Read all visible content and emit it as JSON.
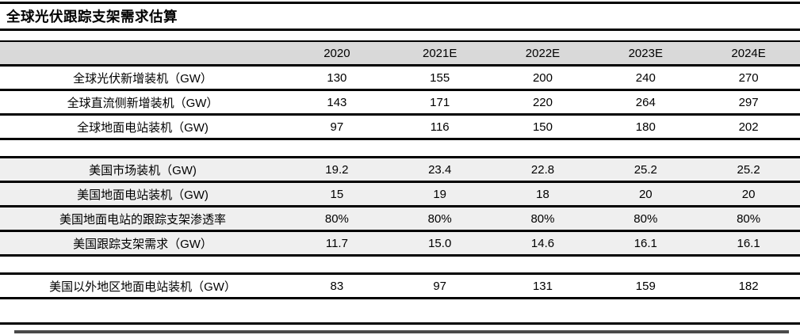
{
  "title": "全球光伏跟踪支架需求估算",
  "table": {
    "columns": [
      "2020",
      "2021E",
      "2022E",
      "2023E",
      "2024E"
    ],
    "sections": [
      {
        "shaded": false,
        "rows": [
          {
            "label": "全球光伏新增装机（GW）",
            "values": [
              "130",
              "155",
              "200",
              "240",
              "270"
            ]
          },
          {
            "label": "全球直流侧新增装机（GW）",
            "values": [
              "143",
              "171",
              "220",
              "264",
              "297"
            ]
          },
          {
            "label": "全球地面电站装机（GW)",
            "values": [
              "97",
              "116",
              "150",
              "180",
              "202"
            ]
          }
        ]
      },
      {
        "shaded": true,
        "rows": [
          {
            "label": "美国市场装机（GW)",
            "values": [
              "19.2",
              "23.4",
              "22.8",
              "25.2",
              "25.2"
            ]
          },
          {
            "label": "美国地面电站装机（GW)",
            "values": [
              "15",
              "19",
              "18",
              "20",
              "20"
            ]
          },
          {
            "label": "美国地面电站的跟踪支架渗透率",
            "values": [
              "80%",
              "80%",
              "80%",
              "80%",
              "80%"
            ]
          },
          {
            "label": "美国跟踪支架需求（GW）",
            "values": [
              "11.7",
              "15.0",
              "14.6",
              "16.1",
              "16.1"
            ]
          }
        ]
      },
      {
        "shaded": false,
        "rows": [
          {
            "label": "美国以外地区地面电站装机（GW）",
            "values": [
              "83",
              "97",
              "131",
              "159",
              "182"
            ]
          }
        ]
      }
    ]
  },
  "colors": {
    "border": "#000000",
    "header_bg": "#d9d9d9",
    "shade_bg": "#efefef",
    "bottom_bar": "#4a4a4a",
    "text": "#000000"
  }
}
